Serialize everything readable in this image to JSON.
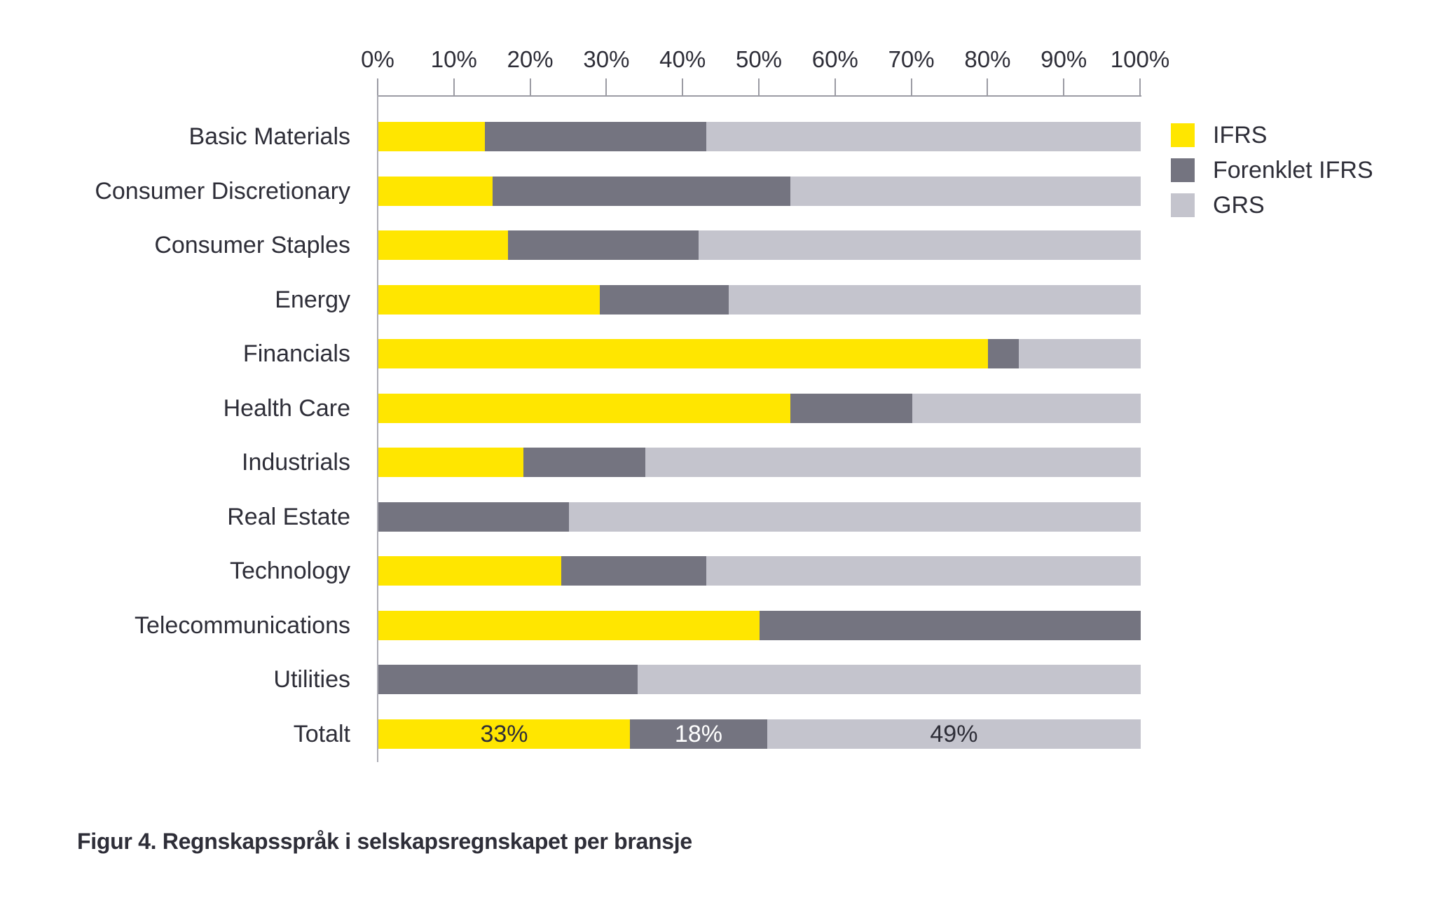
{
  "caption": "Figur 4. Regnskapsspråk i selskapsregnskapet per bransje",
  "colors": {
    "text": "#2E2E38",
    "axis_line": "#9B9BA3",
    "label_on_dark_segment": "#FFFFFF"
  },
  "chart_data": {
    "type": "bar",
    "orientation": "horizontal",
    "stacked": true,
    "grid": false,
    "x_axis": {
      "position": "top",
      "min": 0,
      "max": 100,
      "ticks": [
        "0%",
        "10%",
        "20%",
        "30%",
        "40%",
        "50%",
        "60%",
        "70%",
        "80%",
        "90%",
        "100%"
      ]
    },
    "categories": [
      "Basic Materials",
      "Consumer Discretionary",
      "Consumer Staples",
      "Energy",
      "Financials",
      "Health Care",
      "Industrials",
      "Real Estate",
      "Technology",
      "Telecommunications",
      "Utilities",
      "Totalt"
    ],
    "series": [
      {
        "name": "IFRS",
        "color": "#FFE600",
        "values": [
          14,
          15,
          17,
          29,
          80,
          54,
          19,
          0,
          24,
          50,
          0,
          33
        ]
      },
      {
        "name": "Forenklet IFRS",
        "color": "#747480",
        "values": [
          29,
          39,
          25,
          17,
          4,
          16,
          16,
          25,
          19,
          50,
          34,
          18
        ]
      },
      {
        "name": "GRS",
        "color": "#C4C4CD",
        "values": [
          57,
          46,
          58,
          54,
          16,
          30,
          65,
          75,
          57,
          0,
          66,
          49
        ]
      }
    ],
    "data_labels": {
      "Totalt": [
        "33%",
        "18%",
        "49%"
      ]
    },
    "legend": {
      "position": "right",
      "entries": [
        "IFRS",
        "Forenklet IFRS",
        "GRS"
      ]
    }
  }
}
